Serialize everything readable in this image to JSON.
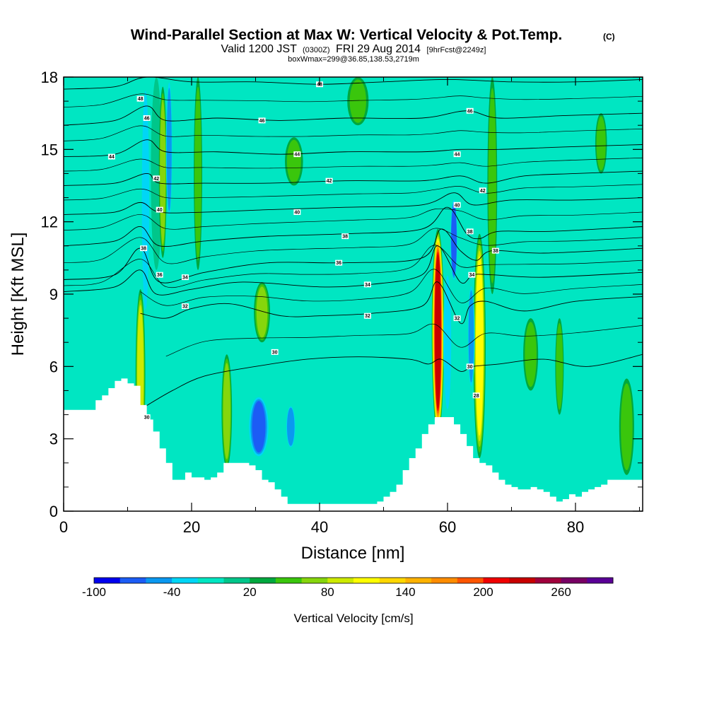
{
  "chart_data": {
    "type": "heatmap",
    "title": "Wind-Parallel Section at Max W: Vertical Velocity & Pot.Temp.",
    "title_mark": "(C)",
    "subtitle_parts": [
      "Valid 1200 JST",
      "(0300Z)",
      "FRI 29 Aug 2014",
      "[9hrFcst@2249z]"
    ],
    "subtitle2": "boxWmax=299@36.85,138.53,2719m",
    "xlabel": "Distance [nm]",
    "ylabel": "Height [Kft MSL]",
    "xlim": [
      0,
      90.5
    ],
    "ylim": [
      0,
      18
    ],
    "x_ticks": [
      0,
      20,
      40,
      60,
      80
    ],
    "y_ticks": [
      0,
      3,
      6,
      9,
      12,
      15,
      18
    ],
    "grid": false,
    "colorbar": {
      "label": "Vertical Velocity [cm/s]",
      "min": -100,
      "max": 300,
      "step": 20,
      "tick_labels": [
        -100,
        -40,
        20,
        80,
        140,
        200,
        260
      ],
      "colors": [
        "#0000ee",
        "#1c5cf5",
        "#0a98f0",
        "#00d6f6",
        "#00e6c2",
        "#00c68a",
        "#00a83e",
        "#3ac60c",
        "#86d60c",
        "#cdea00",
        "#ffff00",
        "#ffd700",
        "#ffb200",
        "#ff8c00",
        "#ff5500",
        "#f00000",
        "#c80000",
        "#a0003c",
        "#780064",
        "#5a0096"
      ],
      "placement": "bottom"
    },
    "terrain_kft": [
      [
        0,
        4.2
      ],
      [
        2,
        4.2
      ],
      [
        4,
        4.2
      ],
      [
        5,
        4.6
      ],
      [
        6,
        4.8
      ],
      [
        7,
        5.1
      ],
      [
        8,
        5.4
      ],
      [
        9,
        5.5
      ],
      [
        10,
        5.3
      ],
      [
        11,
        5.2
      ],
      [
        12,
        4.4
      ],
      [
        13,
        3.8
      ],
      [
        14,
        3.3
      ],
      [
        15,
        2.6
      ],
      [
        16,
        2.0
      ],
      [
        17,
        1.3
      ],
      [
        18,
        1.3
      ],
      [
        19,
        1.6
      ],
      [
        20,
        1.4
      ],
      [
        21,
        1.4
      ],
      [
        22,
        1.3
      ],
      [
        23,
        1.4
      ],
      [
        24,
        1.6
      ],
      [
        25,
        2.0
      ],
      [
        26,
        2.0
      ],
      [
        27,
        2.0
      ],
      [
        28,
        2.0
      ],
      [
        29,
        1.9
      ],
      [
        30,
        1.7
      ],
      [
        31,
        1.3
      ],
      [
        32,
        1.2
      ],
      [
        33,
        0.9
      ],
      [
        34,
        0.6
      ],
      [
        35,
        0.3
      ],
      [
        37,
        0.3
      ],
      [
        40,
        0.3
      ],
      [
        43,
        0.3
      ],
      [
        46,
        0.3
      ],
      [
        48,
        0.3
      ],
      [
        49,
        0.4
      ],
      [
        50,
        0.6
      ],
      [
        51,
        0.8
      ],
      [
        52,
        1.1
      ],
      [
        53,
        1.7
      ],
      [
        54,
        2.2
      ],
      [
        55,
        2.6
      ],
      [
        56,
        3.2
      ],
      [
        57,
        3.6
      ],
      [
        58,
        3.9
      ],
      [
        59,
        3.9
      ],
      [
        60,
        3.9
      ],
      [
        61,
        3.6
      ],
      [
        62,
        3.2
      ],
      [
        63,
        2.7
      ],
      [
        64,
        2.2
      ],
      [
        65,
        2.0
      ],
      [
        66,
        1.9
      ],
      [
        67,
        1.6
      ],
      [
        68,
        1.3
      ],
      [
        69,
        1.1
      ],
      [
        70,
        1.0
      ],
      [
        71,
        0.9
      ],
      [
        72,
        0.9
      ],
      [
        73,
        1.0
      ],
      [
        74,
        0.9
      ],
      [
        75,
        0.8
      ],
      [
        76,
        0.6
      ],
      [
        77,
        0.4
      ],
      [
        78,
        0.5
      ],
      [
        79,
        0.7
      ],
      [
        80,
        0.6
      ],
      [
        81,
        0.8
      ],
      [
        82,
        0.9
      ],
      [
        83,
        1.0
      ],
      [
        84,
        1.1
      ],
      [
        85,
        1.3
      ],
      [
        90.5,
        1.3
      ]
    ],
    "w_features": [
      {
        "x": 12.0,
        "z0": 2.0,
        "z1": 9.2,
        "w": 80,
        "width": 1.2
      },
      {
        "x": 12.8,
        "z0": 8.0,
        "z1": 17.8,
        "w": -40,
        "width": 1.0
      },
      {
        "x": 14.5,
        "z0": 10.0,
        "z1": 18.0,
        "w": 0,
        "width": 1.4
      },
      {
        "x": 15.5,
        "z0": 10.5,
        "z1": 17.6,
        "w": 60,
        "width": 0.9
      },
      {
        "x": 16.5,
        "z0": 12.0,
        "z1": 18.0,
        "w": -50,
        "width": 0.7
      },
      {
        "x": 21.0,
        "z0": 10.0,
        "z1": 18.0,
        "w": 40,
        "width": 1.0
      },
      {
        "x": 25.5,
        "z0": 1.8,
        "z1": 6.5,
        "w": 60,
        "width": 1.3
      },
      {
        "x": 31.0,
        "z0": 7.0,
        "z1": 9.5,
        "w": 60,
        "width": 2.2
      },
      {
        "x": 30.5,
        "z0": 2.2,
        "z1": 4.8,
        "w": -70,
        "width": 3.2
      },
      {
        "x": 35.5,
        "z0": 2.6,
        "z1": 4.4,
        "w": -60,
        "width": 1.2
      },
      {
        "x": 45.0,
        "z0": 2.0,
        "z1": 3.8,
        "w": -20,
        "width": 6.0
      },
      {
        "x": 58.5,
        "z0": 3.2,
        "z1": 11.7,
        "w": 220,
        "width": 1.6
      },
      {
        "x": 60.0,
        "z0": 4.0,
        "z1": 10.0,
        "w": -40,
        "width": 1.0
      },
      {
        "x": 61.0,
        "z0": 9.5,
        "z1": 13.0,
        "w": -80,
        "width": 0.8
      },
      {
        "x": 65.0,
        "z0": 2.2,
        "z1": 11.5,
        "w": 110,
        "width": 1.6
      },
      {
        "x": 63.7,
        "z0": 5.0,
        "z1": 9.5,
        "w": -50,
        "width": 0.8
      },
      {
        "x": 67.0,
        "z0": 9.0,
        "z1": 18.0,
        "w": 40,
        "width": 1.2
      },
      {
        "x": 73.0,
        "z0": 5.0,
        "z1": 8.0,
        "w": 40,
        "width": 2.0
      },
      {
        "x": 77.5,
        "z0": 4.0,
        "z1": 8.0,
        "w": 40,
        "width": 1.0
      },
      {
        "x": 84.0,
        "z0": 14.0,
        "z1": 16.5,
        "w": 40,
        "width": 1.5
      },
      {
        "x": 88.0,
        "z0": 1.5,
        "z1": 5.5,
        "w": 40,
        "width": 2.0
      },
      {
        "x": 46.0,
        "z0": 16.0,
        "z1": 18.0,
        "w": 40,
        "width": 3.0
      },
      {
        "x": 36.0,
        "z0": 13.5,
        "z1": 15.5,
        "w": 40,
        "width": 2.5
      }
    ],
    "theta_contours": [
      {
        "level": 30,
        "points": [
          [
            12.5,
            4.3
          ],
          [
            17,
            5.0
          ],
          [
            22,
            5.6
          ],
          [
            30,
            6.0
          ],
          [
            38,
            6.3
          ],
          [
            46,
            6.4
          ],
          [
            54,
            6.3
          ],
          [
            57,
            6.1
          ],
          [
            59,
            6.3
          ],
          [
            62,
            5.8
          ],
          [
            64,
            6.0
          ],
          [
            68,
            6.1
          ],
          [
            75,
            6.3
          ],
          [
            82,
            6.0
          ],
          [
            90.5,
            6.5
          ]
        ]
      },
      {
        "level": 32,
        "points": [
          [
            12,
            8.2
          ],
          [
            16,
            8.0
          ],
          [
            20,
            8.4
          ],
          [
            26,
            8.6
          ],
          [
            34,
            8.1
          ],
          [
            40,
            8.1
          ],
          [
            48,
            8.2
          ],
          [
            56,
            8.5
          ],
          [
            58.5,
            9.5
          ],
          [
            62,
            7.8
          ],
          [
            63.5,
            8.5
          ],
          [
            66,
            8.7
          ],
          [
            72,
            8.3
          ],
          [
            80,
            8.7
          ],
          [
            90.5,
            8.9
          ]
        ]
      },
      {
        "level": 34,
        "points": [
          [
            0,
            9.1
          ],
          [
            8,
            9.3
          ],
          [
            12,
            10.0
          ],
          [
            14.5,
            9.0
          ],
          [
            20,
            9.2
          ],
          [
            28,
            9.5
          ],
          [
            40,
            9.3
          ],
          [
            48,
            9.4
          ],
          [
            56,
            9.8
          ],
          [
            58.5,
            11.0
          ],
          [
            62,
            9.5
          ],
          [
            64,
            9.8
          ],
          [
            67,
            9.8
          ],
          [
            75,
            9.7
          ],
          [
            90.5,
            9.9
          ]
        ]
      },
      {
        "level": 36,
        "points": [
          [
            0,
            9.6
          ],
          [
            8,
            9.8
          ],
          [
            12,
            10.9
          ],
          [
            15,
            9.5
          ],
          [
            22,
            9.9
          ],
          [
            32,
            10.3
          ],
          [
            44,
            10.3
          ],
          [
            56,
            10.5
          ],
          [
            59,
            11.7
          ],
          [
            62,
            10.8
          ],
          [
            64.5,
            10.4
          ],
          [
            67,
            10.8
          ],
          [
            75,
            10.7
          ],
          [
            90.5,
            10.9
          ]
        ]
      },
      {
        "level": 38,
        "points": [
          [
            0,
            11.0
          ],
          [
            8,
            11.2
          ],
          [
            12,
            11.8
          ],
          [
            15,
            11.0
          ],
          [
            22,
            11.2
          ],
          [
            32,
            11.4
          ],
          [
            44,
            11.5
          ],
          [
            56,
            11.7
          ],
          [
            60,
            12.6
          ],
          [
            63,
            11.5
          ],
          [
            65,
            11.3
          ],
          [
            68,
            11.6
          ],
          [
            76,
            11.6
          ],
          [
            90.5,
            11.8
          ]
        ]
      },
      {
        "level": 40,
        "points": [
          [
            0,
            12.3
          ],
          [
            8,
            12.4
          ],
          [
            12,
            12.8
          ],
          [
            15,
            12.4
          ],
          [
            22,
            12.4
          ],
          [
            32,
            12.5
          ],
          [
            44,
            12.6
          ],
          [
            56,
            12.7
          ],
          [
            61,
            13.2
          ],
          [
            64,
            12.7
          ],
          [
            70,
            12.9
          ],
          [
            80,
            12.9
          ],
          [
            90.5,
            13.0
          ]
        ]
      },
      {
        "level": 42,
        "points": [
          [
            0,
            13.5
          ],
          [
            8,
            13.6
          ],
          [
            13,
            14.0
          ],
          [
            15,
            13.6
          ],
          [
            22,
            13.6
          ],
          [
            32,
            13.6
          ],
          [
            44,
            13.7
          ],
          [
            56,
            13.7
          ],
          [
            62,
            13.9
          ],
          [
            66,
            13.6
          ],
          [
            72,
            13.9
          ],
          [
            80,
            14.0
          ],
          [
            90.5,
            14.1
          ]
        ]
      },
      {
        "level": 44,
        "points": [
          [
            0,
            14.7
          ],
          [
            8,
            14.8
          ],
          [
            13,
            15.4
          ],
          [
            16,
            14.9
          ],
          [
            24,
            14.9
          ],
          [
            34,
            14.8
          ],
          [
            44,
            14.9
          ],
          [
            56,
            14.9
          ],
          [
            62,
            15.0
          ],
          [
            68,
            15.0
          ],
          [
            78,
            15.1
          ],
          [
            90.5,
            15.2
          ]
        ]
      },
      {
        "level": 46,
        "points": [
          [
            0,
            16.0
          ],
          [
            8,
            16.2
          ],
          [
            13,
            16.8
          ],
          [
            16,
            16.2
          ],
          [
            24,
            16.3
          ],
          [
            34,
            16.2
          ],
          [
            44,
            16.3
          ],
          [
            56,
            16.3
          ],
          [
            63,
            16.6
          ],
          [
            68,
            16.3
          ],
          [
            78,
            16.4
          ],
          [
            90.5,
            16.5
          ]
        ]
      },
      {
        "level": 48,
        "points": [
          [
            0,
            17.5
          ],
          [
            8,
            17.6
          ],
          [
            13,
            18.0
          ],
          [
            20,
            17.8
          ],
          [
            30,
            17.8
          ],
          [
            40,
            17.7
          ],
          [
            50,
            17.8
          ],
          [
            60,
            17.9
          ],
          [
            70,
            17.8
          ],
          [
            80,
            17.8
          ],
          [
            90.5,
            17.9
          ]
        ]
      }
    ],
    "contour_labels": [
      {
        "text": "48",
        "x": 12,
        "z": 17.1
      },
      {
        "text": "48",
        "x": 40,
        "z": 17.7
      },
      {
        "text": "46",
        "x": 13,
        "z": 16.3
      },
      {
        "text": "46",
        "x": 31,
        "z": 16.2
      },
      {
        "text": "46",
        "x": 63.5,
        "z": 16.6
      },
      {
        "text": "44",
        "x": 7.5,
        "z": 14.7
      },
      {
        "text": "44",
        "x": 36.5,
        "z": 14.8
      },
      {
        "text": "44",
        "x": 61.5,
        "z": 14.8
      },
      {
        "text": "42",
        "x": 14.5,
        "z": 13.8
      },
      {
        "text": "42",
        "x": 41.5,
        "z": 13.7
      },
      {
        "text": "42",
        "x": 65.5,
        "z": 13.3
      },
      {
        "text": "40",
        "x": 15,
        "z": 12.5
      },
      {
        "text": "40",
        "x": 36.5,
        "z": 12.4
      },
      {
        "text": "40",
        "x": 61.5,
        "z": 12.7
      },
      {
        "text": "38",
        "x": 12.5,
        "z": 10.9
      },
      {
        "text": "38",
        "x": 44,
        "z": 11.4
      },
      {
        "text": "38",
        "x": 63.5,
        "z": 11.6
      },
      {
        "text": "38",
        "x": 67.5,
        "z": 10.8
      },
      {
        "text": "36",
        "x": 15,
        "z": 9.8
      },
      {
        "text": "36",
        "x": 43,
        "z": 10.3
      },
      {
        "text": "34",
        "x": 19,
        "z": 9.7
      },
      {
        "text": "34",
        "x": 47.5,
        "z": 9.4
      },
      {
        "text": "34",
        "x": 63.8,
        "z": 9.8
      },
      {
        "text": "32",
        "x": 19,
        "z": 8.5
      },
      {
        "text": "32",
        "x": 47.5,
        "z": 8.1
      },
      {
        "text": "32",
        "x": 61.5,
        "z": 8.0
      },
      {
        "text": "30",
        "x": 33,
        "z": 6.6
      },
      {
        "text": "30",
        "x": 63.5,
        "z": 6.0
      },
      {
        "text": "28",
        "x": 64.5,
        "z": 4.8
      },
      {
        "text": "30",
        "x": 13,
        "z": 3.9
      }
    ]
  }
}
